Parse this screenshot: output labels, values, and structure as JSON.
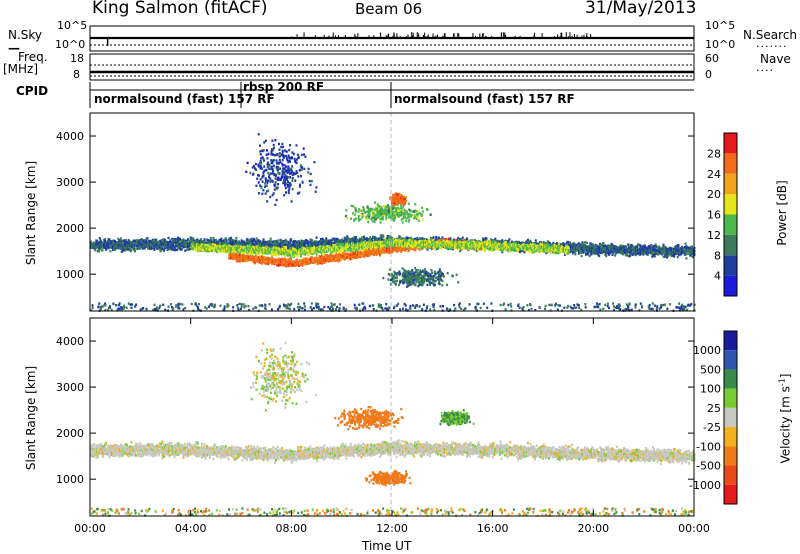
{
  "header": {
    "station": "King Salmon (fitACF)",
    "beam": "Beam 06",
    "date": "31/May/2013"
  },
  "summary": {
    "nsky_label": "N.Sky",
    "nsky_ticks": [
      "10^5",
      "10^0"
    ],
    "nsearch_label": "N.Search",
    "nsearch_ticks": [
      "10^5",
      "10^0"
    ],
    "freq_label": "Freq.",
    "freq_unit": "[MHz]",
    "freq_ticks": [
      "18",
      "8"
    ],
    "nave_label": "Nave",
    "nave_ticks": [
      "60",
      "0"
    ],
    "cpid_label": "CPID",
    "cpid_segments": [
      {
        "label": "normalsound (fast) 157 RF",
        "start_h": 0.0,
        "end_h": 6.0
      },
      {
        "label": "rbsp 200 RF",
        "start_h": 6.0,
        "end_h": 12.0
      },
      {
        "label": "normalsound (fast) 157 RF",
        "start_h": 12.0,
        "end_h": 24.0
      }
    ]
  },
  "axes": {
    "ylabel": "Slant Range [km]",
    "y_ticks": [
      "1000",
      "2000",
      "3000",
      "4000"
    ],
    "xlabel": "Time UT",
    "x_ticks": [
      "00:00",
      "04:00",
      "08:00",
      "12:00",
      "16:00",
      "20:00",
      "00:00"
    ]
  },
  "power_scale": {
    "label": "Power [dB]",
    "ticks": [
      "4",
      "8",
      "12",
      "16",
      "20",
      "24",
      "28"
    ],
    "colors": [
      "#1a1adc",
      "#1f3d9e",
      "#3b7a5c",
      "#4cb84c",
      "#e5e51a",
      "#f2a51a",
      "#f26a1a",
      "#e61a1a"
    ]
  },
  "velocity_scale": {
    "label": "Velocity [m s",
    "label_sup": "-1",
    "label_end": "]",
    "ticks": [
      "1000",
      "500",
      "100",
      "25",
      "-25",
      "-100",
      "-500",
      "-1000"
    ],
    "colors": [
      "#1a1aa0",
      "#2f57b0",
      "#3a8a4a",
      "#77cc33",
      "#c8c8c0",
      "#f2b01a",
      "#f07a1a",
      "#e84a1a",
      "#e61a1a"
    ]
  },
  "chart_data": {
    "type": "heatmap",
    "x_unit": "hours UT",
    "xlim": [
      0,
      24
    ],
    "ylim": [
      200,
      4500
    ],
    "panels": [
      {
        "name": "Power",
        "features": [
          {
            "kind": "band",
            "t_start": 0.0,
            "t_end": 24.0,
            "range_center_km": [
              [
                0,
                1650
              ],
              [
                4,
                1680
              ],
              [
                8,
                1650
              ],
              [
                12,
                1730
              ],
              [
                16,
                1660
              ],
              [
                20,
                1570
              ],
              [
                24,
                1520
              ]
            ],
            "half_width_km": 170,
            "level_db": 8
          },
          {
            "kind": "band",
            "t_start": 5.5,
            "t_end": 15.5,
            "range_center_km": [
              [
                5.5,
                1420
              ],
              [
                8,
                1260
              ],
              [
                10,
                1400
              ],
              [
                12,
                1580
              ],
              [
                14,
                1700
              ],
              [
                15.5,
                1640
              ]
            ],
            "half_width_km": 110,
            "level_db": 26
          },
          {
            "kind": "band",
            "t_start": 4.0,
            "t_end": 19.0,
            "range_center_km": [
              [
                4,
                1620
              ],
              [
                8,
                1500
              ],
              [
                12,
                1700
              ],
              [
                16,
                1640
              ],
              [
                19,
                1560
              ]
            ],
            "half_width_km": 120,
            "level_db": 16
          },
          {
            "kind": "cloud",
            "t_center": 7.5,
            "range_center_km": 3300,
            "t_spread": 1.6,
            "range_spread_km": 850,
            "level_db": 6
          },
          {
            "kind": "cloud",
            "t_center": 11.8,
            "range_center_km": 2350,
            "t_spread": 2.2,
            "range_spread_km": 250,
            "level_db": 14
          },
          {
            "kind": "cloud",
            "t_center": 13.0,
            "range_center_km": 950,
            "t_spread": 1.8,
            "range_spread_km": 250,
            "level_db": 9
          },
          {
            "kind": "cloud",
            "t_center": 12.2,
            "range_center_km": 2650,
            "t_spread": 0.4,
            "range_spread_km": 150,
            "level_db": 26
          }
        ]
      },
      {
        "name": "Velocity",
        "features": [
          {
            "kind": "band",
            "t_start": 0.0,
            "t_end": 24.0,
            "range_center_km": [
              [
                0,
                1650
              ],
              [
                4,
                1660
              ],
              [
                8,
                1550
              ],
              [
                12,
                1700
              ],
              [
                16,
                1660
              ],
              [
                20,
                1570
              ],
              [
                24,
                1520
              ]
            ],
            "half_width_km": 200,
            "velocity_ms": 0
          },
          {
            "kind": "cloud",
            "t_center": 11.0,
            "range_center_km": 2350,
            "t_spread": 1.6,
            "range_spread_km": 300,
            "velocity_ms": -400
          },
          {
            "kind": "cloud",
            "t_center": 14.5,
            "range_center_km": 2350,
            "t_spread": 0.8,
            "range_spread_km": 200,
            "velocity_ms": 100
          },
          {
            "kind": "cloud",
            "t_center": 11.8,
            "range_center_km": 1050,
            "t_spread": 1.0,
            "range_spread_km": 180,
            "velocity_ms": -200
          },
          {
            "kind": "cloud",
            "t_center": 7.5,
            "range_center_km": 3300,
            "t_spread": 1.5,
            "range_spread_km": 850,
            "velocity_ms": 10
          }
        ]
      }
    ]
  }
}
